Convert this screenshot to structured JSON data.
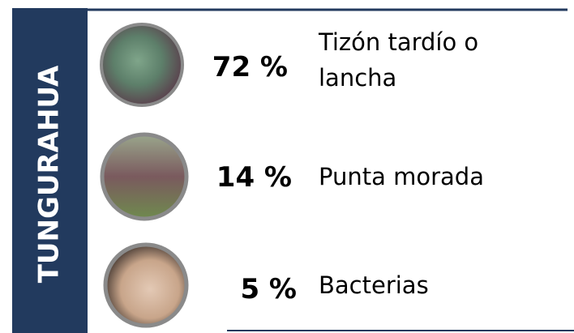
{
  "region": "TUNGURAHUA",
  "items": [
    {
      "percent": "72 %",
      "label_lines": [
        "Tizón tardío o",
        "lancha"
      ]
    },
    {
      "percent": "14 %",
      "label_lines": [
        "Punta morada"
      ]
    },
    {
      "percent": "5 %",
      "label_lines": [
        "Bacterias"
      ]
    }
  ]
}
